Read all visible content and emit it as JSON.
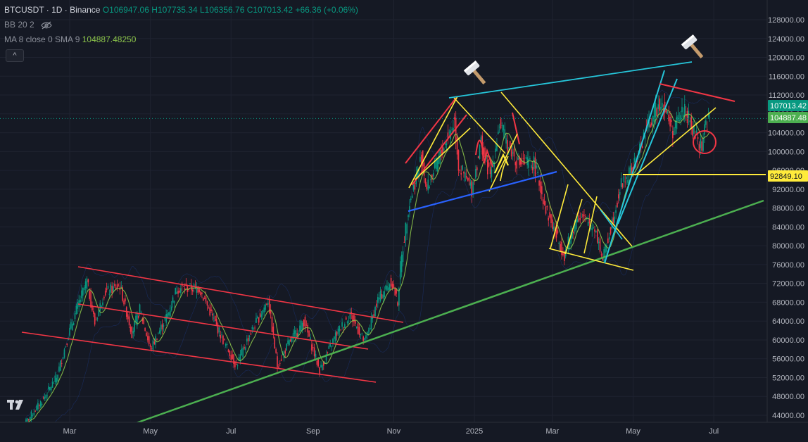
{
  "legend": {
    "symbol": "BTCUSDT · 1D · Binance",
    "open": "O106947.06",
    "high": "H107735.34",
    "low": "L106356.76",
    "close": "C107013.42",
    "change": "+66.36 (+0.06%)",
    "bb_label": "BB 20 2",
    "ma_label": "MA 8 close 0 SMA 9",
    "ma_value": "104887.48250"
  },
  "colors": {
    "background": "#151924",
    "up": "#089981",
    "down": "#f23645",
    "ma_line": "#8bc34a",
    "red_trend": "#f23645",
    "yellow_trend": "#ffeb3b",
    "green_trend": "#4caf50",
    "cyan_trend": "#26c6da",
    "blue_trend": "#2962ff",
    "current_price": "#089981"
  },
  "icons": [
    "hammer-icon",
    "hammer-icon",
    "eye-crossed-icon",
    "tradingview-logo-icon",
    "chevron-up-icon"
  ],
  "chart_data": {
    "type": "candlestick",
    "title": "BTCUSDT · 1D · Binance",
    "x_ticks": [
      "Mar",
      "May",
      "Jul",
      "Sep",
      "Nov",
      "2025",
      "Mar",
      "May",
      "Jul"
    ],
    "y_ticks": [
      "44000.00",
      "48000.00",
      "52000.00",
      "56000.00",
      "60000.00",
      "64000.00",
      "68000.00",
      "72000.00",
      "76000.00",
      "80000.00",
      "84000.00",
      "88000.00",
      "92000.00",
      "96000.00",
      "100000.00",
      "104000.00",
      "108000.00",
      "112000.00",
      "116000.00",
      "120000.00",
      "124000.00",
      "128000.00"
    ],
    "ylim": [
      42500,
      129000
    ],
    "price_badges": [
      {
        "label": "107013.42",
        "value": 107013.42,
        "color": "#089981"
      },
      {
        "label": "104887.48",
        "value": 104887.48,
        "color": "#4caf50"
      },
      {
        "label": "92849.10",
        "value": 92849.1,
        "color": "#ffeb3b"
      }
    ],
    "close_series": [
      [
        "2024-01-26",
        41800
      ],
      [
        "2024-02-10",
        47500
      ],
      [
        "2024-02-20",
        52000
      ],
      [
        "2024-03-01",
        62000
      ],
      [
        "2024-03-08",
        68000
      ],
      [
        "2024-03-14",
        72500
      ],
      [
        "2024-03-20",
        63500
      ],
      [
        "2024-03-27",
        70000
      ],
      [
        "2024-04-08",
        71500
      ],
      [
        "2024-04-17",
        61500
      ],
      [
        "2024-04-23",
        66500
      ],
      [
        "2024-05-01",
        58000
      ],
      [
        "2024-05-15",
        66000
      ],
      [
        "2024-05-21",
        71000
      ],
      [
        "2024-06-07",
        71000
      ],
      [
        "2024-06-24",
        60500
      ],
      [
        "2024-07-05",
        54500
      ],
      [
        "2024-07-14",
        60500
      ],
      [
        "2024-07-29",
        68500
      ],
      [
        "2024-08-05",
        54500
      ],
      [
        "2024-08-13",
        59000
      ],
      [
        "2024-08-25",
        64000
      ],
      [
        "2024-09-06",
        53500
      ],
      [
        "2024-09-18",
        61000
      ],
      [
        "2024-09-29",
        65500
      ],
      [
        "2024-10-10",
        59500
      ],
      [
        "2024-10-20",
        68500
      ],
      [
        "2024-10-30",
        72500
      ],
      [
        "2024-11-04",
        68000
      ],
      [
        "2024-11-06",
        75500
      ],
      [
        "2024-11-12",
        88000
      ],
      [
        "2024-11-22",
        99000
      ],
      [
        "2024-11-26",
        92000
      ],
      [
        "2024-12-05",
        98500
      ],
      [
        "2024-12-17",
        106500
      ],
      [
        "2024-12-20",
        97000
      ],
      [
        "2024-12-30",
        92000
      ],
      [
        "2025-01-06",
        102000
      ],
      [
        "2025-01-13",
        94500
      ],
      [
        "2025-01-20",
        106000
      ],
      [
        "2025-01-27",
        101000
      ],
      [
        "2025-02-03",
        97500
      ],
      [
        "2025-02-15",
        97500
      ],
      [
        "2025-02-25",
        87000
      ],
      [
        "2025-03-10",
        78000
      ],
      [
        "2025-03-20",
        86500
      ],
      [
        "2025-04-02",
        84000
      ],
      [
        "2025-04-08",
        77000
      ],
      [
        "2025-04-22",
        93000
      ],
      [
        "2025-05-02",
        97000
      ],
      [
        "2025-05-10",
        104000
      ],
      [
        "2025-05-22",
        111000
      ],
      [
        "2025-05-31",
        104500
      ],
      [
        "2025-06-09",
        109500
      ],
      [
        "2025-06-14",
        105000
      ],
      [
        "2025-06-22",
        101000
      ],
      [
        "2025-06-24",
        105500
      ],
      [
        "2025-06-28",
        107013.42
      ]
    ],
    "overlays": "drawn trendlines in red, yellow, green, cyan and blue; two hammer icons; red circle marker"
  }
}
